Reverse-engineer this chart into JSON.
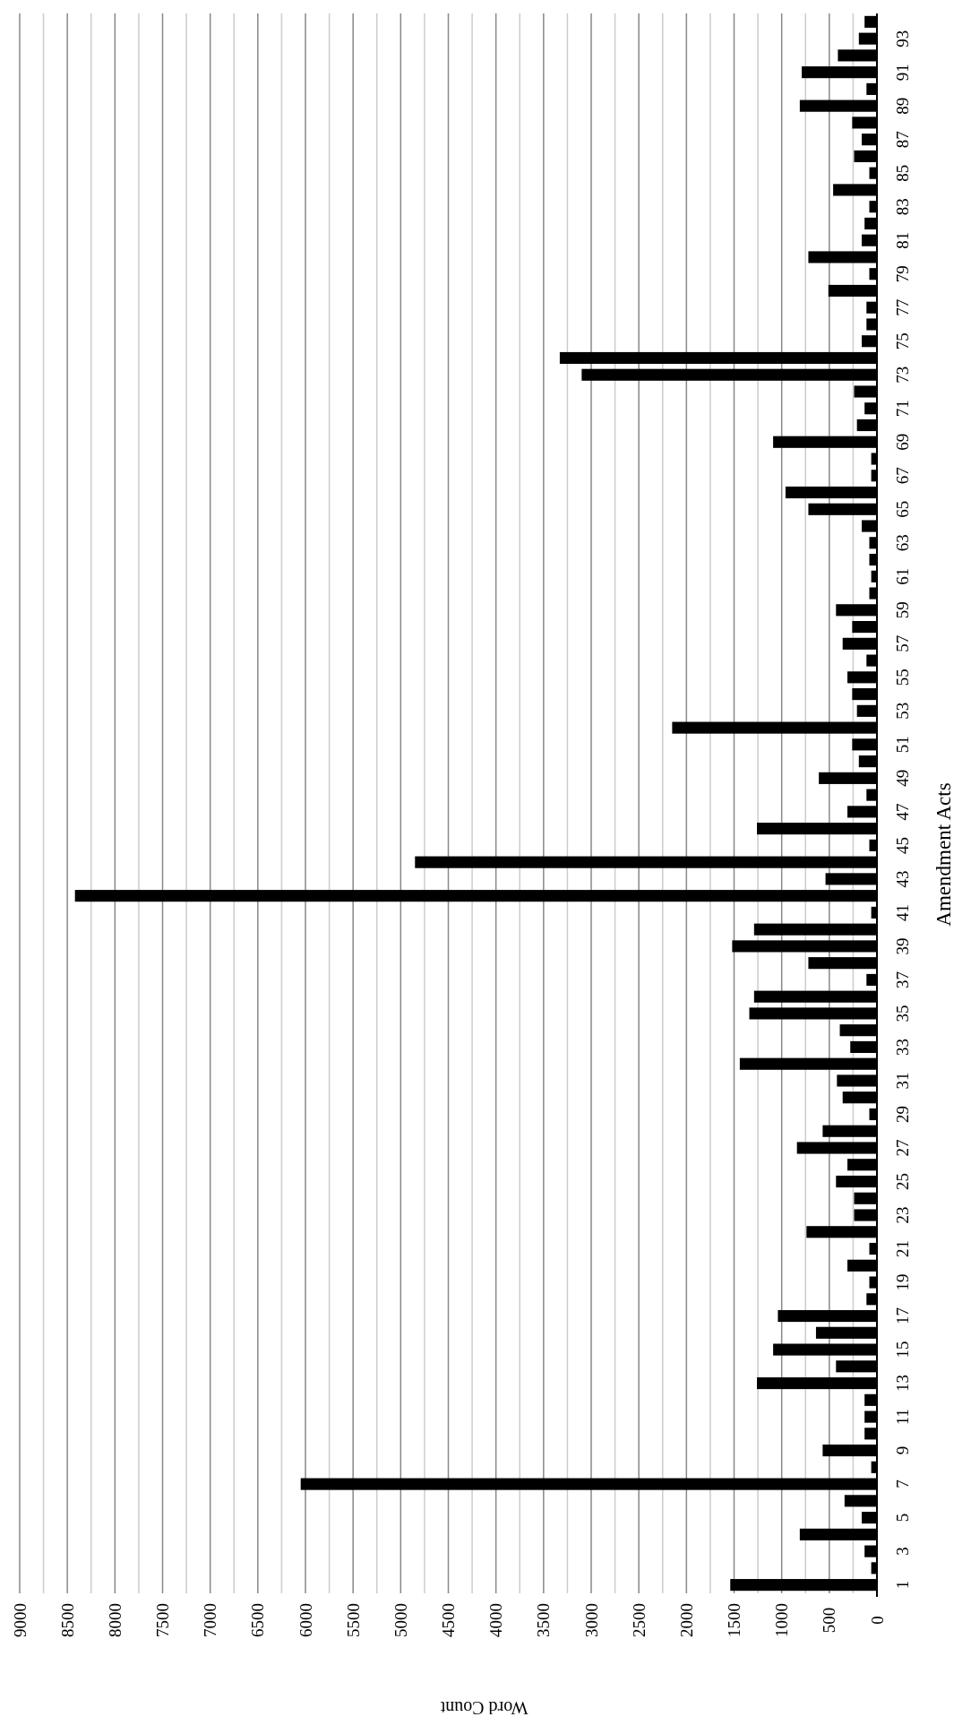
{
  "chart_data": {
    "type": "bar",
    "orientation": "horizontal",
    "xlabel": "Word Count",
    "ylabel": "Amendment Acts",
    "categories": [
      null,
      "93",
      null,
      "91",
      null,
      "89",
      null,
      "87",
      null,
      "85",
      null,
      "83",
      null,
      "81",
      null,
      "79",
      null,
      "77",
      null,
      "75",
      null,
      "73",
      null,
      "71",
      null,
      "69",
      null,
      "67",
      null,
      "65",
      null,
      "63",
      null,
      "61",
      null,
      "59",
      null,
      "57",
      null,
      "55",
      null,
      "53",
      null,
      "51",
      null,
      "49",
      null,
      "47",
      null,
      "45",
      null,
      "43",
      null,
      "41",
      null,
      "39",
      null,
      "37",
      null,
      "35",
      null,
      "33",
      null,
      "31",
      null,
      "29",
      null,
      "27",
      null,
      "25",
      null,
      "23",
      null,
      "21",
      null,
      "19",
      null,
      "17",
      null,
      "15",
      null,
      "13",
      null,
      "11",
      null,
      "9",
      null,
      "7",
      null,
      "5",
      null,
      "3",
      null,
      "1"
    ],
    "values": [
      130,
      190,
      410,
      790,
      110,
      810,
      260,
      160,
      240,
      80,
      460,
      80,
      130,
      160,
      720,
      80,
      510,
      110,
      110,
      160,
      3330,
      3100,
      240,
      130,
      210,
      1090,
      60,
      60,
      960,
      720,
      160,
      80,
      80,
      60,
      80,
      430,
      260,
      360,
      110,
      310,
      260,
      210,
      2150,
      260,
      190,
      610,
      110,
      310,
      1260,
      80,
      4850,
      540,
      8420,
      60,
      1290,
      1520,
      720,
      110,
      1290,
      1340,
      390,
      280,
      1440,
      420,
      360,
      80,
      570,
      840,
      310,
      430,
      240,
      240,
      740,
      80,
      310,
      80,
      110,
      1040,
      640,
      1090,
      430,
      1260,
      130,
      130,
      130,
      570,
      60,
      6050,
      340,
      160,
      810,
      130,
      60,
      1540
    ],
    "color": "#000000",
    "xlim": [
      9000,
      0
    ],
    "xticks": [
      9000,
      {
        "value": 8750,
        "label": null
      },
      8500,
      {
        "value": 8250,
        "label": null
      },
      8000,
      {
        "value": 7750,
        "label": null
      },
      7500,
      {
        "value": 7250,
        "label": null
      },
      7000,
      {
        "value": 6750,
        "label": null
      },
      6500,
      {
        "value": 6250,
        "label": null
      },
      6000,
      {
        "value": 5750,
        "label": null
      },
      5500,
      {
        "value": 5250,
        "label": null
      },
      5000,
      {
        "value": 4750,
        "label": null
      },
      4500,
      {
        "value": 4250,
        "label": null
      },
      4000,
      {
        "value": 3750,
        "label": null
      },
      3500,
      {
        "value": 3250,
        "label": null
      },
      3000,
      {
        "value": 2750,
        "label": null
      },
      2500,
      {
        "value": 2250,
        "label": null
      },
      2000,
      {
        "value": 1750,
        "label": null
      },
      1500,
      {
        "value": 1250,
        "label": null
      },
      1000,
      {
        "value": 750,
        "label": null
      },
      500,
      {
        "value": 250,
        "label": null
      },
      0
    ],
    "grid": true
  }
}
